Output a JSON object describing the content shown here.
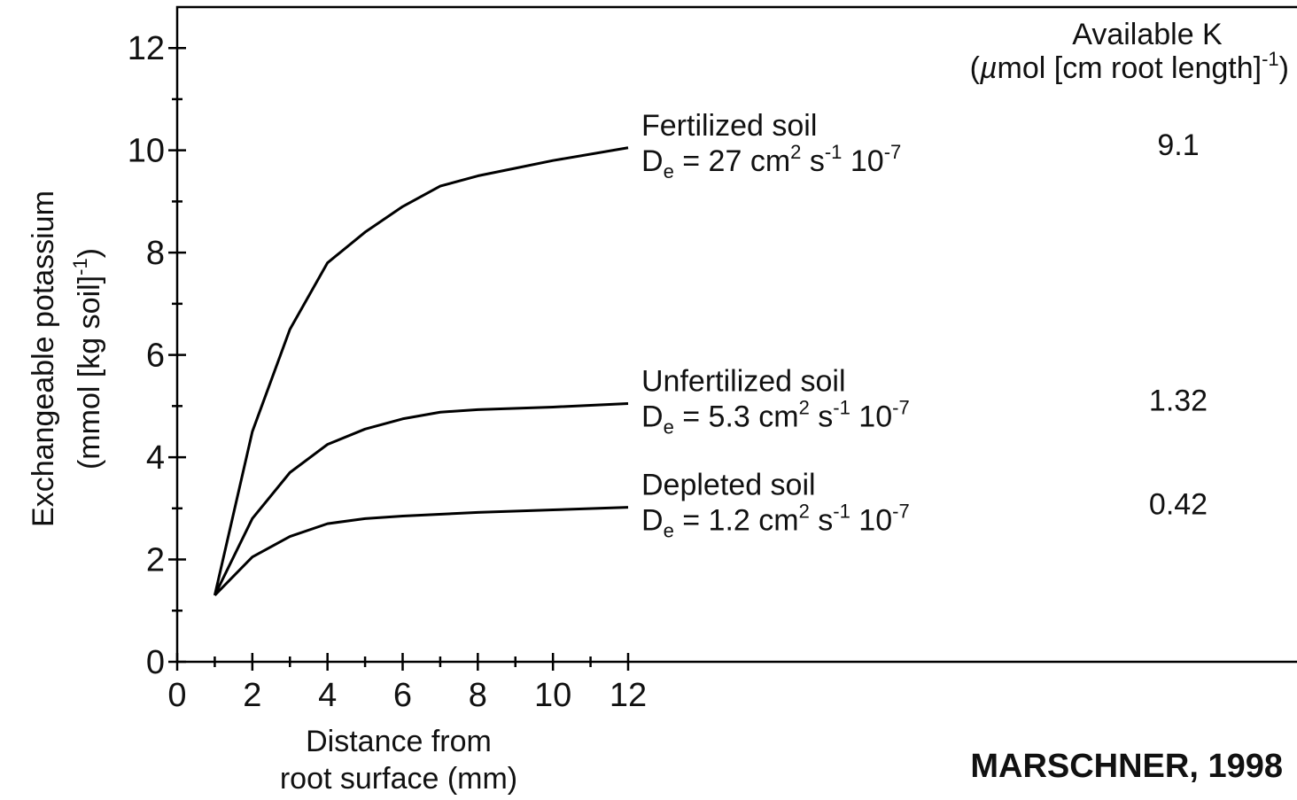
{
  "chart_data": {
    "type": "line",
    "xlabel": [
      "Distance from",
      "root surface (mm)"
    ],
    "ylabel": [
      "Exchangeable potassium",
      [
        {
          "t": "(mmol [kg soil]"
        },
        {
          "t": "-1",
          "s": "sup"
        },
        {
          "t": ")"
        }
      ]
    ],
    "xlim": [
      0,
      29.8
    ],
    "ylim": [
      0,
      12.8
    ],
    "xticks": [
      0,
      2,
      4,
      6,
      8,
      10,
      12
    ],
    "yticks": [
      0,
      2,
      4,
      6,
      8,
      10,
      12
    ],
    "xminorticks": [
      1,
      3,
      5,
      7,
      9,
      11
    ],
    "yminorticks": [
      1,
      3,
      5,
      7,
      9,
      11
    ],
    "color": "#000000",
    "k_header": [
      "Available K",
      [
        {
          "t": "("
        },
        {
          "t": "µ",
          "s": "it"
        },
        {
          "t": "mol [cm root length]"
        },
        {
          "t": "-1",
          "s": "sup"
        },
        {
          "t": ")"
        }
      ]
    ],
    "series": [
      {
        "name": "Fertilized soil",
        "diffusion": [
          {
            "t": "D"
          },
          {
            "t": "e",
            "s": "sub"
          },
          {
            "t": " = 27 cm"
          },
          {
            "t": "2",
            "s": "sup"
          },
          {
            "t": " s"
          },
          {
            "t": "-1",
            "s": "sup"
          },
          {
            "t": " 10"
          },
          {
            "t": "-7",
            "s": "sup"
          }
        ],
        "available_k": 9.1,
        "x": [
          1,
          2,
          3,
          4,
          5,
          6,
          7,
          8,
          9,
          10,
          12
        ],
        "values": [
          1.3,
          4.5,
          6.5,
          7.8,
          8.4,
          8.9,
          9.3,
          9.5,
          9.65,
          9.8,
          10.05
        ]
      },
      {
        "name": "Unfertilized soil",
        "diffusion": [
          {
            "t": "D"
          },
          {
            "t": "e",
            "s": "sub"
          },
          {
            "t": " = 5.3 cm"
          },
          {
            "t": "2",
            "s": "sup"
          },
          {
            "t": " s"
          },
          {
            "t": "-1",
            "s": "sup"
          },
          {
            "t": " 10"
          },
          {
            "t": "-7",
            "s": "sup"
          }
        ],
        "available_k": 1.32,
        "x": [
          1,
          2,
          3,
          4,
          5,
          6,
          7,
          8,
          10,
          12
        ],
        "values": [
          1.3,
          2.8,
          3.7,
          4.25,
          4.55,
          4.75,
          4.88,
          4.93,
          4.98,
          5.05
        ]
      },
      {
        "name": "Depleted soil",
        "diffusion": [
          {
            "t": "D"
          },
          {
            "t": "e",
            "s": "sub"
          },
          {
            "t": " = 1.2 cm"
          },
          {
            "t": "2",
            "s": "sup"
          },
          {
            "t": " s"
          },
          {
            "t": "-1",
            "s": "sup"
          },
          {
            "t": " 10"
          },
          {
            "t": "-7",
            "s": "sup"
          }
        ],
        "available_k": 0.42,
        "x": [
          1,
          2,
          3,
          4,
          5,
          6,
          8,
          10,
          12
        ],
        "values": [
          1.3,
          2.05,
          2.45,
          2.7,
          2.8,
          2.85,
          2.92,
          2.97,
          3.02
        ]
      }
    ],
    "source": "MARSCHNER, 1998"
  }
}
